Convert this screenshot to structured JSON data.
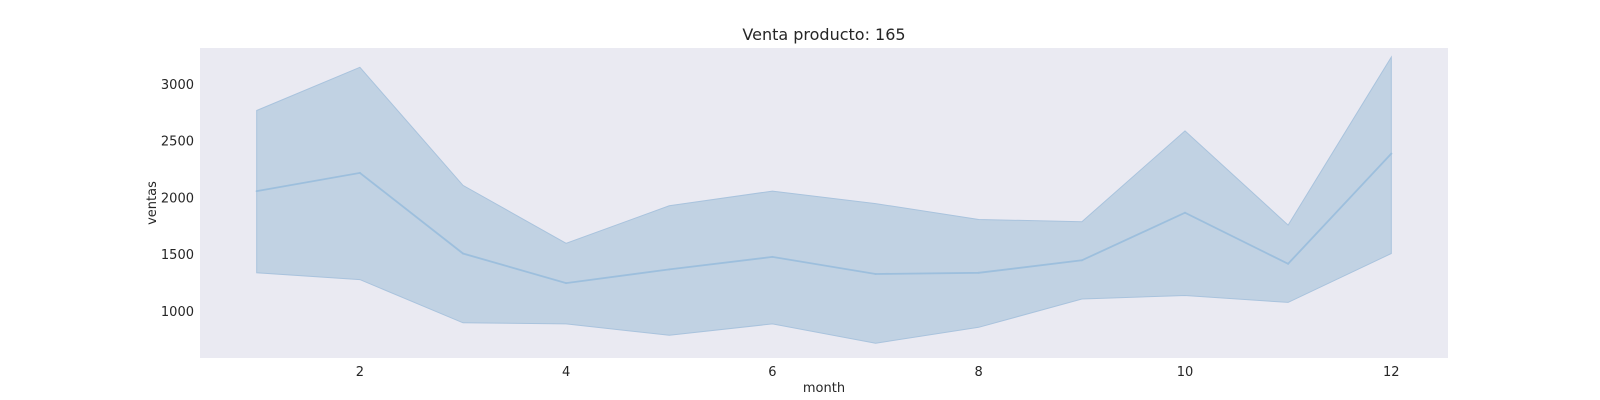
{
  "chart_data": {
    "type": "line",
    "title": "Venta producto: 165",
    "xlabel": "month",
    "ylabel": "ventas",
    "x": [
      1,
      2,
      3,
      4,
      5,
      6,
      7,
      8,
      9,
      10,
      11,
      12
    ],
    "xlim": [
      0.45,
      12.55
    ],
    "ylim": [
      590,
      3320
    ],
    "x_ticks": [
      2,
      4,
      6,
      8,
      10,
      12
    ],
    "y_ticks": [
      1000,
      1500,
      2000,
      2500,
      3000
    ],
    "grid": false,
    "series": [
      {
        "values": [
          2060,
          2220,
          1510,
          1250,
          1370,
          1480,
          1330,
          1340,
          1450,
          1870,
          1420,
          2390
        ],
        "ci_upper": [
          2770,
          3150,
          2110,
          1600,
          1930,
          2060,
          1950,
          1810,
          1790,
          2590,
          1760,
          3240
        ],
        "ci_lower": [
          1340,
          1280,
          900,
          890,
          790,
          890,
          720,
          860,
          1110,
          1140,
          1080,
          1510
        ]
      }
    ],
    "colors": {
      "plot_background": "#eaeaf2",
      "line": "#9dbfdd",
      "band": "#c1d2e3",
      "band_edge": "#a9c3dd"
    }
  }
}
